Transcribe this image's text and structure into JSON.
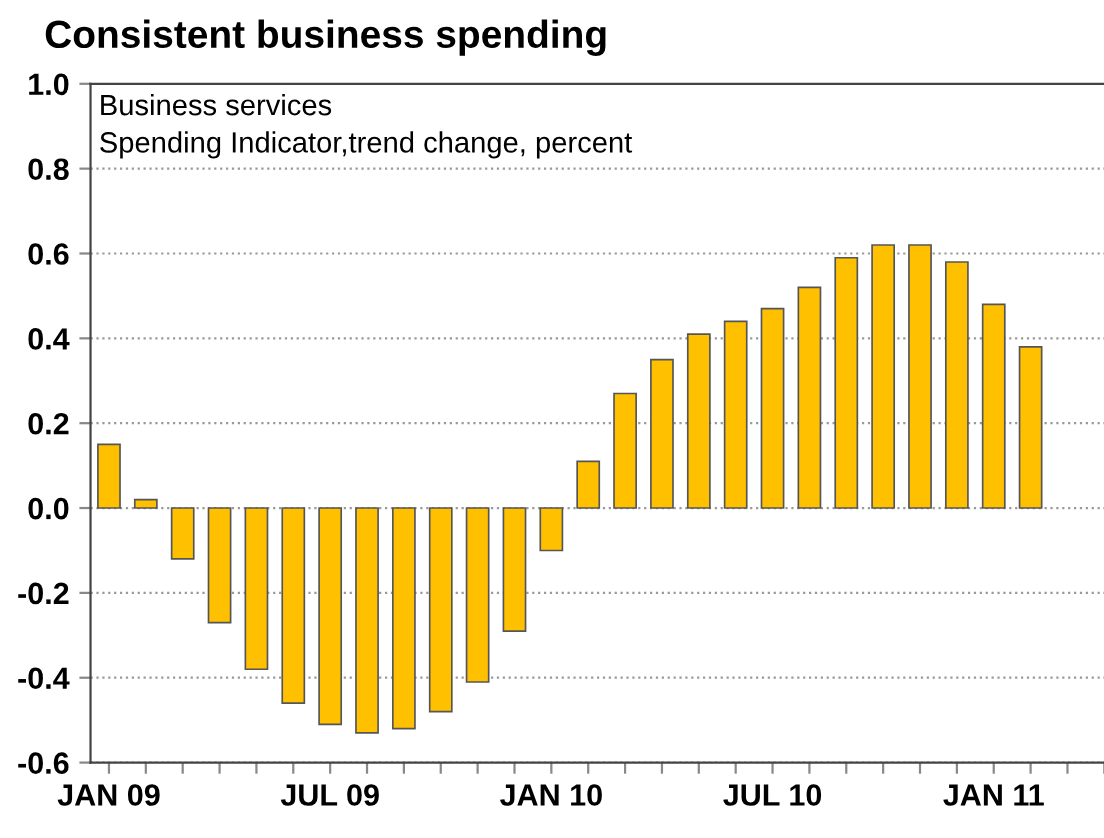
{
  "chart_data": {
    "type": "bar",
    "title": "Consistent business spending",
    "annotations": [
      "Business services",
      "Spending Indicator,trend change, percent"
    ],
    "categories": [
      "JAN 09",
      null,
      null,
      null,
      null,
      null,
      "JUL 09",
      null,
      null,
      null,
      null,
      null,
      "JAN 10",
      null,
      null,
      null,
      null,
      null,
      "JUL 10",
      null,
      null,
      null,
      null,
      null,
      "JAN 11",
      null,
      null,
      null
    ],
    "series": [
      {
        "color": "#ffc000",
        "values": [
          0.15,
          0.02,
          -0.12,
          -0.27,
          -0.38,
          -0.46,
          -0.51,
          -0.53,
          -0.52,
          -0.48,
          -0.41,
          -0.29,
          -0.1,
          0.11,
          0.27,
          0.35,
          0.41,
          0.44,
          0.47,
          0.52,
          0.59,
          0.62,
          0.62,
          0.58,
          0.48,
          0.38,
          null,
          null
        ]
      }
    ],
    "ylim": [
      -0.6,
      1.0
    ],
    "yticks": [
      {
        "value": -0.6,
        "label": "-0.6"
      },
      {
        "value": -0.4,
        "label": "-0.4"
      },
      {
        "value": -0.2,
        "label": "-0.2"
      },
      {
        "value": 0,
        "label": "0.0"
      },
      0.2,
      0.4,
      0.6,
      0.8,
      {
        "value": 1,
        "label": "1.0"
      }
    ],
    "grid": "y"
  }
}
